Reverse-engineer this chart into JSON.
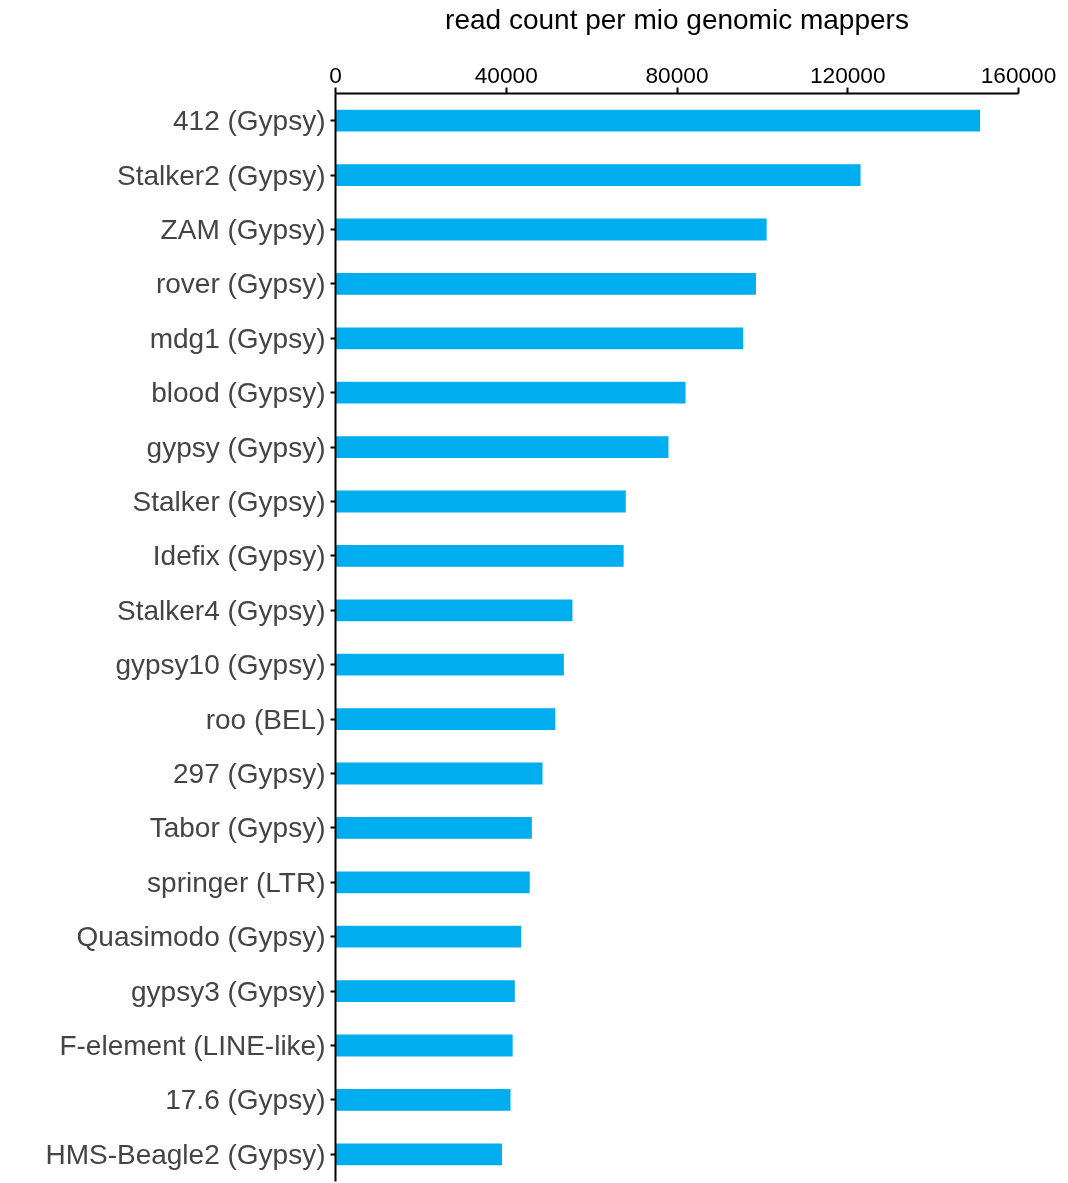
{
  "chart_data": {
    "type": "bar",
    "orientation": "horizontal",
    "xlabel": "read count per mio genomic mappers",
    "categories": [
      "412 (Gypsy)",
      "Stalker2 (Gypsy)",
      "ZAM (Gypsy)",
      "rover (Gypsy)",
      "mdg1 (Gypsy)",
      "blood (Gypsy)",
      "gypsy (Gypsy)",
      "Stalker (Gypsy)",
      "Idefix (Gypsy)",
      "Stalker4 (Gypsy)",
      "gypsy10 (Gypsy)",
      "roo (BEL)",
      "297 (Gypsy)",
      "Tabor (Gypsy)",
      "springer (LTR)",
      "Quasimodo (Gypsy)",
      "gypsy3 (Gypsy)",
      "F-element (LINE-like)",
      "17.6 (Gypsy)",
      "HMS-Beagle2 (Gypsy)"
    ],
    "values": [
      151000,
      123000,
      101000,
      98500,
      95500,
      82000,
      78000,
      68000,
      67500,
      55500,
      53500,
      51500,
      48500,
      46000,
      45500,
      43500,
      42000,
      41500,
      41000,
      39000
    ],
    "color": "#00aeef",
    "xlim": [
      0,
      160000
    ],
    "xticks": [
      0,
      40000,
      80000,
      120000,
      160000
    ],
    "grid": false
  }
}
